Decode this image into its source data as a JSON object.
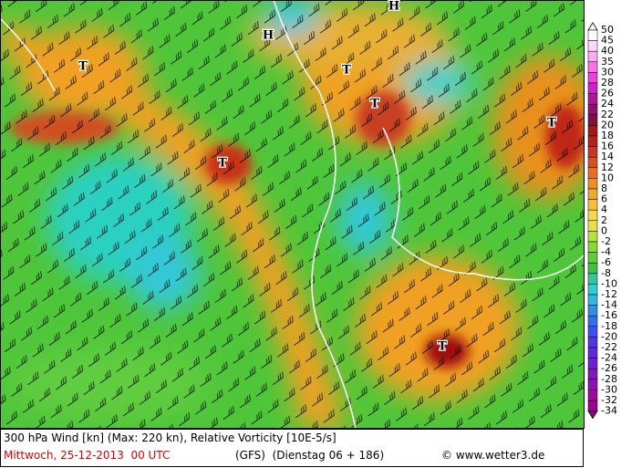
{
  "map": {
    "labels": [
      "T",
      "H",
      "H",
      "T",
      "T",
      "T",
      "T",
      "T"
    ]
  },
  "colorbar": {
    "labels": [
      50,
      45,
      40,
      35,
      30,
      28,
      26,
      24,
      22,
      20,
      18,
      16,
      14,
      12,
      10,
      8,
      6,
      4,
      2,
      0,
      -2,
      -4,
      -6,
      -8,
      -10,
      -12,
      -14,
      -16,
      -18,
      -20,
      -22,
      -24,
      -26,
      -28,
      -30,
      -32,
      -34
    ]
  },
  "footer": {
    "title": "300 hPa Wind [kn] (Max: 220 kn), Relative Vorticity [10E-5/s]",
    "date": "Mittwoch, 25-12-2013  00 UTC",
    "run": "(GFS)  (Dienstag 06 + 186)",
    "credit": "© www.wetter3.de"
  }
}
